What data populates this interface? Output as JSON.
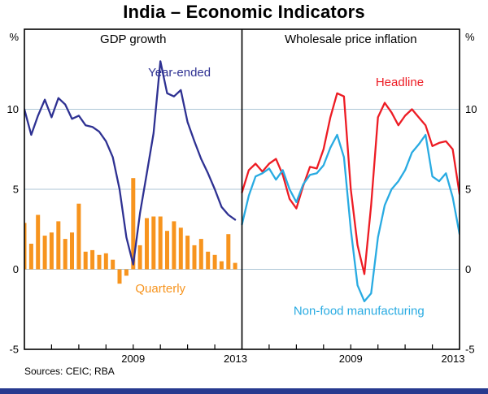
{
  "title": "India – Economic Indicators",
  "footer": {
    "sources_label": "Sources: CEIC; RBA"
  },
  "colors": {
    "grid": "#ADC6D6",
    "axis": "#000000",
    "bottom_bar": "#273A8F",
    "gdp_line": "#2E3192",
    "gdp_bar": "#F7941E",
    "headline": "#ED1C24",
    "nonfood": "#29ABE2"
  },
  "axes": {
    "unit": "%",
    "y_min": -5,
    "y_max": 15,
    "gridline_values": [
      0,
      5,
      10
    ],
    "y_tick_labels": [
      10,
      5,
      0,
      -5
    ],
    "x_min": 2005,
    "x_max": 2013,
    "x_minor_ticks": [
      2006,
      2007,
      2008,
      2009,
      2010,
      2011,
      2012
    ],
    "x_tick_labels": [
      2009,
      2013
    ],
    "grid": true,
    "legend": "inline-annotations"
  },
  "chart_data": [
    {
      "type": "bar+line",
      "panel": "left",
      "title": "GDP growth",
      "x_range": [
        2005,
        2013
      ],
      "y_range": [
        -5,
        15
      ],
      "series": [
        {
          "name": "Quarterly",
          "type": "bar",
          "color": "#F7941E",
          "x_start": 2005.0,
          "x_step": 0.25,
          "values": [
            2.9,
            1.6,
            3.4,
            2.1,
            2.3,
            3.0,
            1.9,
            2.3,
            4.1,
            1.1,
            1.2,
            0.9,
            1.0,
            0.6,
            -0.9,
            -0.4,
            5.7,
            1.5,
            3.2,
            3.3,
            3.3,
            2.4,
            3.0,
            2.6,
            2.1,
            1.5,
            1.9,
            1.1,
            0.9,
            0.5,
            2.2,
            0.4
          ]
        },
        {
          "name": "Year-ended",
          "type": "line",
          "color": "#2E3192",
          "x_start": 2005.0,
          "x_step": 0.25,
          "values": [
            10.0,
            8.4,
            9.6,
            10.6,
            9.5,
            10.7,
            10.3,
            9.4,
            9.6,
            9.0,
            8.9,
            8.6,
            8.0,
            7.0,
            5.0,
            2.0,
            0.3,
            3.5,
            6.0,
            8.5,
            13.0,
            11.0,
            10.8,
            11.2,
            9.2,
            8.0,
            6.9,
            6.0,
            5.0,
            3.9,
            3.4,
            3.1
          ]
        }
      ],
      "labels": [
        {
          "text": "Year-ended",
          "color": "#2E3192",
          "x": 2010.7,
          "y": 12.3
        },
        {
          "text": "Quarterly",
          "color": "#F7941E",
          "x": 2010.0,
          "y": -1.2
        }
      ]
    },
    {
      "type": "line",
      "panel": "right",
      "title": "Wholesale price inflation",
      "x_range": [
        2005,
        2013
      ],
      "y_range": [
        -5,
        15
      ],
      "series": [
        {
          "name": "Headline",
          "type": "line",
          "color": "#ED1C24",
          "x_start": 2005.0,
          "x_step": 0.25,
          "values": [
            4.8,
            6.2,
            6.6,
            6.1,
            6.6,
            6.9,
            5.9,
            4.4,
            3.8,
            5.2,
            6.4,
            6.3,
            7.5,
            9.5,
            11.0,
            10.8,
            5.0,
            1.5,
            -0.3,
            4.0,
            9.5,
            10.4,
            9.8,
            9.0,
            9.6,
            10.0,
            9.5,
            9.0,
            7.7,
            7.9,
            8.0,
            7.5,
            4.7
          ]
        },
        {
          "name": "Non-food manufacturing",
          "type": "line",
          "color": "#29ABE2",
          "x_start": 2005.0,
          "x_step": 0.25,
          "values": [
            2.8,
            4.6,
            5.8,
            6.0,
            6.3,
            5.6,
            6.2,
            5.0,
            4.2,
            5.3,
            5.9,
            6.0,
            6.5,
            7.6,
            8.4,
            7.0,
            2.5,
            -1.0,
            -2.0,
            -1.5,
            2.0,
            4.0,
            5.0,
            5.5,
            6.2,
            7.3,
            7.8,
            8.4,
            5.8,
            5.5,
            6.0,
            4.5,
            2.2
          ]
        }
      ],
      "labels": [
        {
          "text": "Headline",
          "color": "#ED1C24",
          "x": 2010.8,
          "y": 11.7
        },
        {
          "text": "Non-food manufacturing",
          "color": "#29ABE2",
          "x": 2009.3,
          "y": -2.6
        }
      ]
    }
  ]
}
